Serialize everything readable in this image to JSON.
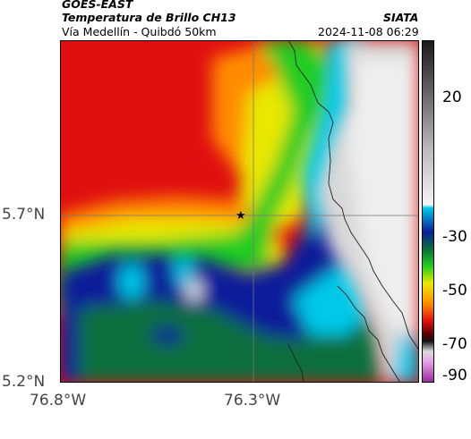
{
  "header": {
    "satellite": "GOES-EAST",
    "product": "Temperatura de Brillo CH13",
    "region": "Vía Medellín - Quibdó 50km",
    "agency": "SIATA",
    "datetime": "2024-11-08 06:29"
  },
  "axes": {
    "lat_ticks": [
      "5.7°N",
      "5.2°N"
    ],
    "lon_ticks": [
      "76.8°W",
      "76.3°W"
    ]
  },
  "colorbar": {
    "ticks": [
      "20",
      "-30",
      "-50",
      "-70",
      "-90"
    ]
  },
  "marker": {
    "symbol": "★",
    "label": ""
  },
  "colors": {
    "red": "#e01010",
    "orange": "#ff8c00",
    "yellow": "#e8e800",
    "green": "#22cc22",
    "darkgreen": "#0a6e3c",
    "blue": "#0a1f9a",
    "cyan": "#00c8e8",
    "grey": "#d8d8d8"
  }
}
